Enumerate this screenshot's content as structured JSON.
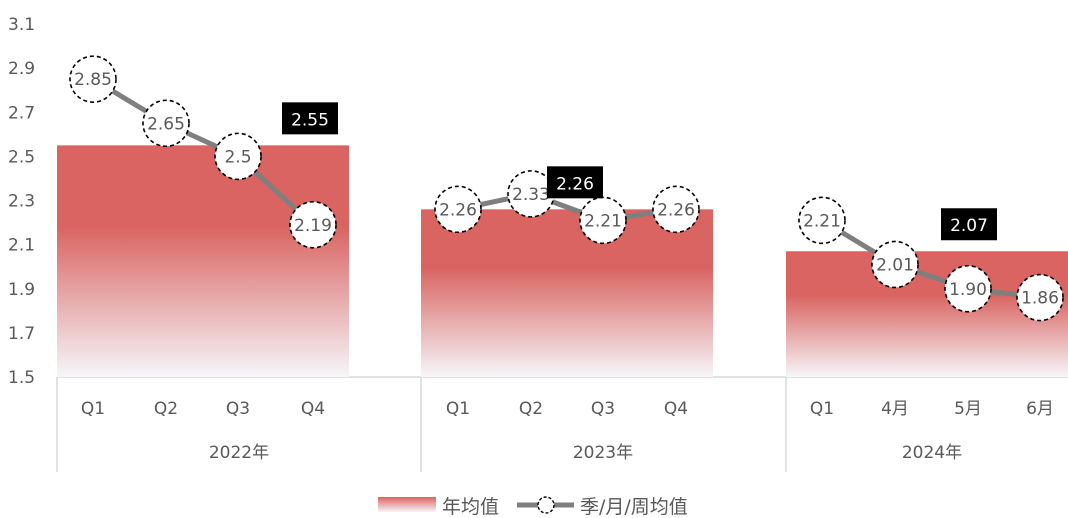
{
  "chart_data": {
    "type": "bar",
    "ylim": [
      1.5,
      3.1
    ],
    "yticks": [
      "1.5",
      "1.7",
      "1.9",
      "2.1",
      "2.3",
      "2.5",
      "2.7",
      "2.9",
      "3.1"
    ],
    "groups": [
      {
        "name": "2022年",
        "categories": [
          "Q1",
          "Q2",
          "Q3",
          "Q4"
        ],
        "average": 2.55,
        "average_label": "2.55",
        "values": [
          2.85,
          2.65,
          2.5,
          2.19
        ],
        "value_labels": [
          "2.85",
          "2.65",
          "2.5",
          "2.19"
        ]
      },
      {
        "name": "2023年",
        "categories": [
          "Q1",
          "Q2",
          "Q3",
          "Q4"
        ],
        "average": 2.26,
        "average_label": "2.26",
        "values": [
          2.26,
          2.33,
          2.21,
          2.26
        ],
        "value_labels": [
          "2.26",
          "2.33",
          "2.21",
          "2.26"
        ]
      },
      {
        "name": "2024年",
        "categories": [
          "Q1",
          "4月",
          "5月",
          "6月"
        ],
        "average": 2.07,
        "average_label": "2.07",
        "values": [
          2.21,
          2.01,
          1.9,
          1.86
        ],
        "value_labels": [
          "2.21",
          "2.01",
          "1.90",
          "1.86"
        ]
      }
    ],
    "legend": {
      "bar_label": "年均值",
      "line_label": "季/月/周均值",
      "placement": "bottom"
    },
    "colors": {
      "bar_top": "#d96461",
      "bar_bottom": "#f6f6fa",
      "line": "#7f7f7f",
      "label_box": "#000000",
      "axis": "#d9d9d9",
      "text": "#595959"
    }
  }
}
